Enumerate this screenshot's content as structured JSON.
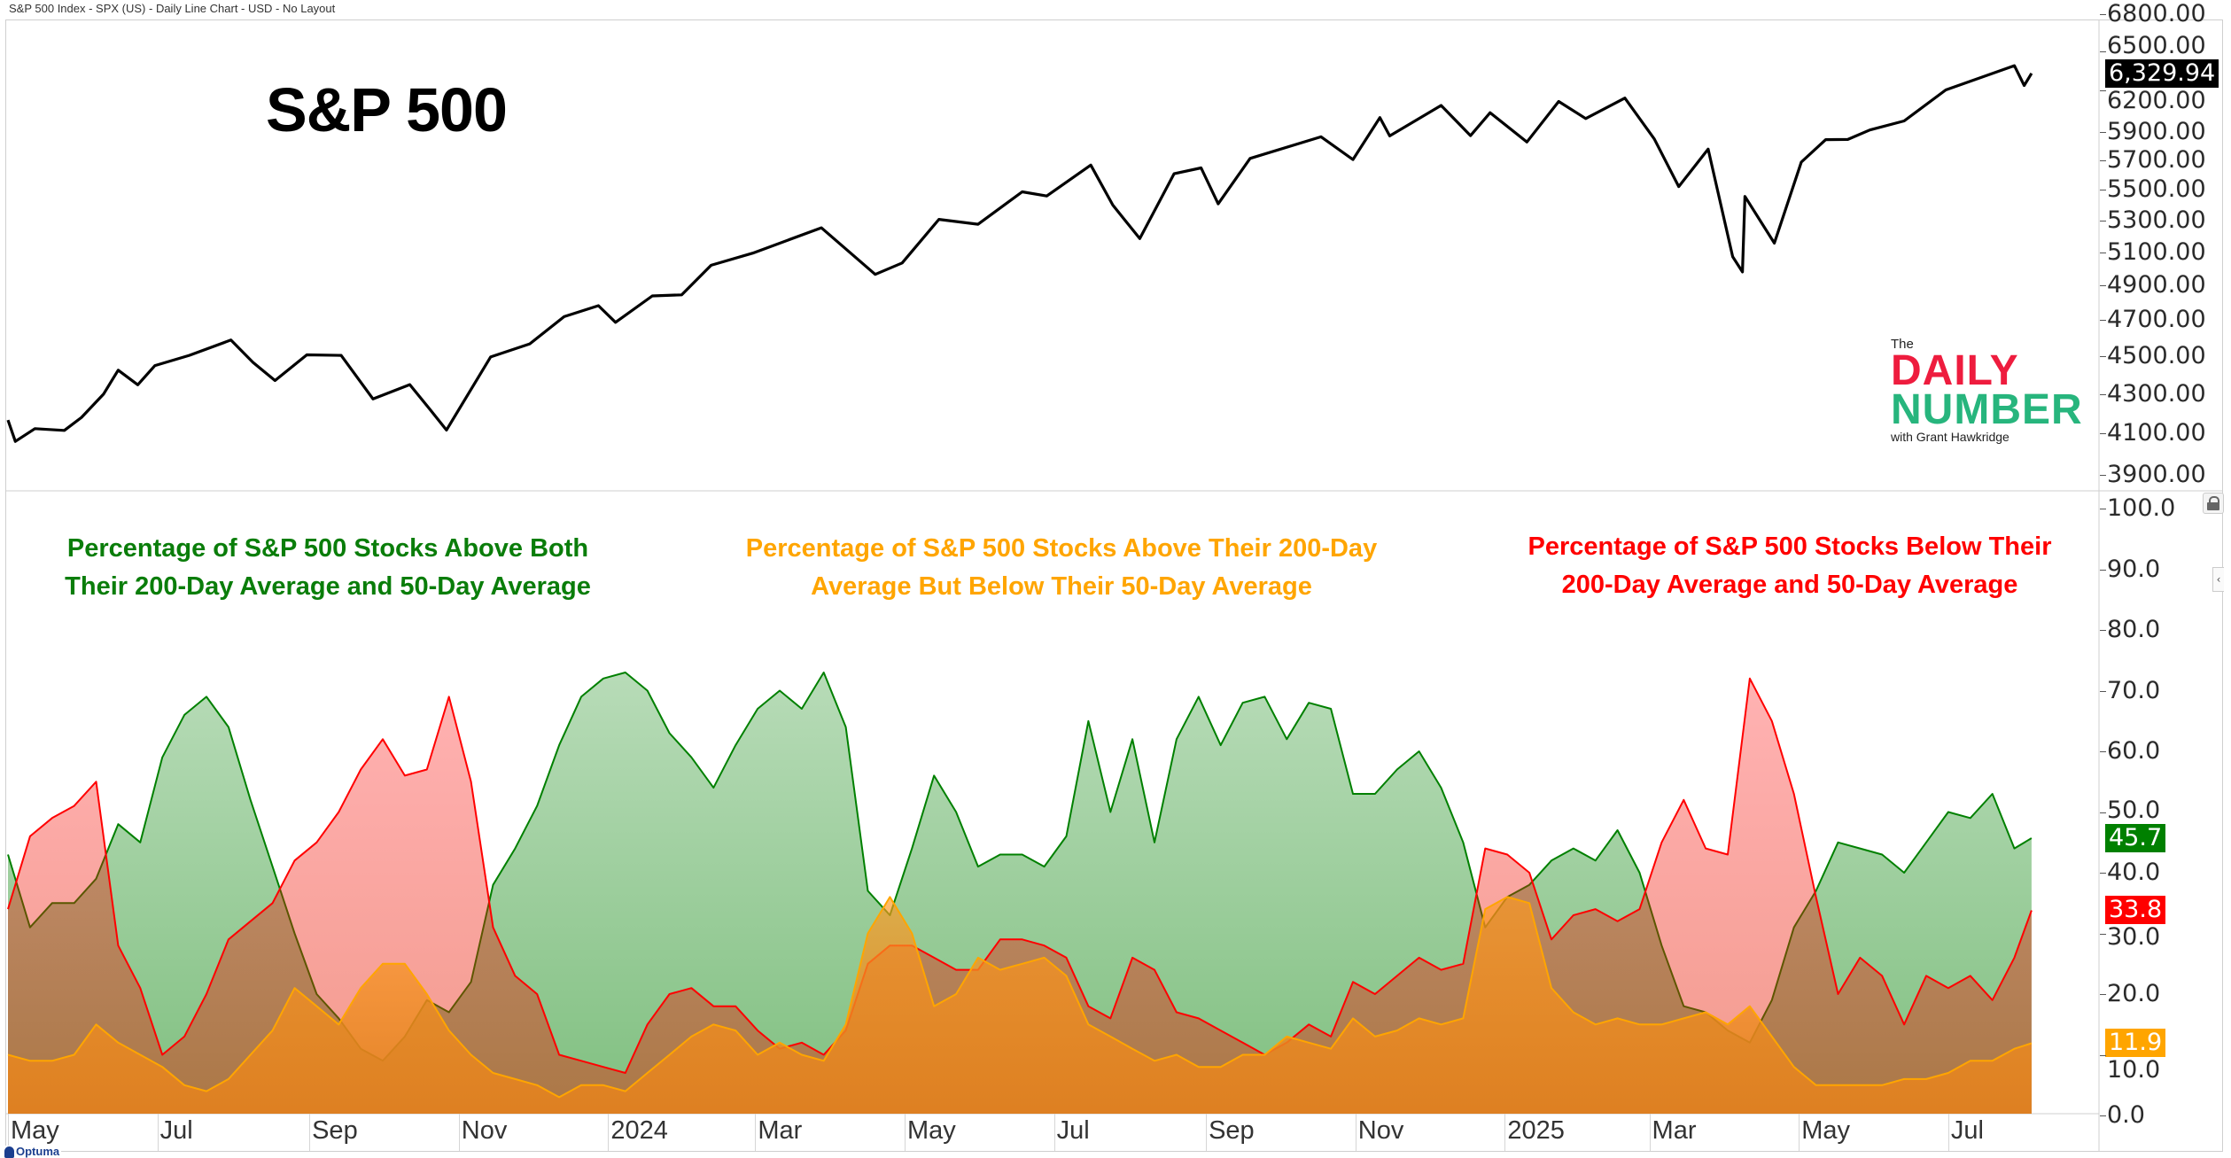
{
  "header": {
    "title": "S&P 500 Index - SPX (US) - Daily Line Chart - USD - No Layout"
  },
  "branding": {
    "optuma": "Optuma",
    "logo": {
      "the": "The",
      "line1": "DAILY",
      "line2": "NUMBER",
      "byline": "with Grant Hawkridge"
    }
  },
  "x_axis": {
    "ticks": [
      {
        "date": "2023-05-01",
        "label": "May"
      },
      {
        "date": "2023-07-01",
        "label": "Jul"
      },
      {
        "date": "2023-09-01",
        "label": "Sep"
      },
      {
        "date": "2023-11-01",
        "label": "Nov"
      },
      {
        "date": "2024-01-01",
        "label": "2024"
      },
      {
        "date": "2024-03-01",
        "label": "Mar"
      },
      {
        "date": "2024-05-01",
        "label": "May"
      },
      {
        "date": "2024-07-01",
        "label": "Jul"
      },
      {
        "date": "2024-09-01",
        "label": "Sep"
      },
      {
        "date": "2024-11-01",
        "label": "Nov"
      },
      {
        "date": "2025-01-01",
        "label": "2025"
      },
      {
        "date": "2025-03-01",
        "label": "Mar"
      },
      {
        "date": "2025-05-01",
        "label": "May"
      },
      {
        "date": "2025-07-01",
        "label": "Jul"
      }
    ]
  },
  "chart_data": [
    {
      "type": "line",
      "title": "S&P 500",
      "y_scale": "log",
      "ylim": [
        3850,
        6800
      ],
      "y_ticks": [
        "6800.00",
        "6500.00",
        "6200.00",
        "5900.00",
        "5700.00",
        "5500.00",
        "5300.00",
        "5100.00",
        "4900.00",
        "4700.00",
        "4500.00",
        "4300.00",
        "4100.00",
        "3900.00"
      ],
      "last_value_label": "6,329.94",
      "color": "#000000",
      "series": [
        {
          "points": [
            [
              "2023-05-01",
              4167
            ],
            [
              "2023-05-04",
              4061
            ],
            [
              "2023-05-12",
              4124
            ],
            [
              "2023-05-24",
              4115
            ],
            [
              "2023-05-31",
              4180
            ],
            [
              "2023-06-09",
              4299
            ],
            [
              "2023-06-15",
              4425
            ],
            [
              "2023-06-23",
              4348
            ],
            [
              "2023-06-30",
              4450
            ],
            [
              "2023-07-14",
              4505
            ],
            [
              "2023-07-31",
              4589
            ],
            [
              "2023-08-09",
              4467
            ],
            [
              "2023-08-18",
              4370
            ],
            [
              "2023-08-31",
              4508
            ],
            [
              "2023-09-14",
              4505
            ],
            [
              "2023-09-27",
              4274
            ],
            [
              "2023-10-12",
              4349
            ],
            [
              "2023-10-20",
              4224
            ],
            [
              "2023-10-27",
              4117
            ],
            [
              "2023-11-14",
              4496
            ],
            [
              "2023-11-30",
              4568
            ],
            [
              "2023-12-14",
              4720
            ],
            [
              "2023-12-28",
              4783
            ],
            [
              "2024-01-04",
              4688
            ],
            [
              "2024-01-19",
              4840
            ],
            [
              "2024-01-31",
              4846
            ],
            [
              "2024-02-12",
              5022
            ],
            [
              "2024-02-29",
              5096
            ],
            [
              "2024-03-28",
              5254
            ],
            [
              "2024-04-19",
              4967
            ],
            [
              "2024-04-30",
              5036
            ],
            [
              "2024-05-15",
              5308
            ],
            [
              "2024-05-31",
              5277
            ],
            [
              "2024-06-18",
              5487
            ],
            [
              "2024-06-28",
              5460
            ],
            [
              "2024-07-16",
              5667
            ],
            [
              "2024-07-25",
              5400
            ],
            [
              "2024-08-05",
              5186
            ],
            [
              "2024-08-19",
              5608
            ],
            [
              "2024-08-30",
              5648
            ],
            [
              "2024-09-06",
              5408
            ],
            [
              "2024-09-19",
              5713
            ],
            [
              "2024-10-18",
              5864
            ],
            [
              "2024-10-31",
              5705
            ],
            [
              "2024-11-11",
              6001
            ],
            [
              "2024-11-15",
              5870
            ],
            [
              "2024-12-06",
              6090
            ],
            [
              "2024-12-18",
              5872
            ],
            [
              "2024-12-26",
              6037
            ],
            [
              "2025-01-10",
              5827
            ],
            [
              "2025-01-23",
              6119
            ],
            [
              "2025-02-03",
              5994
            ],
            [
              "2025-02-19",
              6144
            ],
            [
              "2025-03-03",
              5849
            ],
            [
              "2025-03-13",
              5522
            ],
            [
              "2025-03-25",
              5777
            ],
            [
              "2025-04-04",
              5074
            ],
            [
              "2025-04-08",
              4982
            ],
            [
              "2025-04-09",
              5457
            ],
            [
              "2025-04-21",
              5158
            ],
            [
              "2025-05-02",
              5687
            ],
            [
              "2025-05-12",
              5844
            ],
            [
              "2025-05-21",
              5845
            ],
            [
              "2025-05-30",
              5912
            ],
            [
              "2025-06-13",
              5977
            ],
            [
              "2025-06-30",
              6205
            ],
            [
              "2025-07-28",
              6389
            ],
            [
              "2025-08-01",
              6238
            ],
            [
              "2025-08-04",
              6329.94
            ]
          ]
        }
      ]
    },
    {
      "type": "area",
      "ylim": [
        0,
        100
      ],
      "y_ticks": [
        "100.0",
        "90.0",
        "80.0",
        "70.0",
        "60.0",
        "50.0",
        "40.0",
        "30.0",
        "20.0",
        "10.0",
        "0.0"
      ],
      "grid": false,
      "dates": [
        "2023-05-01",
        "2023-05-10",
        "2023-05-19",
        "2023-05-28",
        "2023-06-06",
        "2023-06-15",
        "2023-06-24",
        "2023-07-03",
        "2023-07-12",
        "2023-07-21",
        "2023-07-30",
        "2023-08-08",
        "2023-08-17",
        "2023-08-26",
        "2023-09-04",
        "2023-09-13",
        "2023-09-22",
        "2023-10-01",
        "2023-10-10",
        "2023-10-19",
        "2023-10-28",
        "2023-11-06",
        "2023-11-15",
        "2023-11-24",
        "2023-12-03",
        "2023-12-12",
        "2023-12-21",
        "2023-12-30",
        "2024-01-08",
        "2024-01-17",
        "2024-01-26",
        "2024-02-04",
        "2024-02-13",
        "2024-02-22",
        "2024-03-02",
        "2024-03-11",
        "2024-03-20",
        "2024-03-29",
        "2024-04-07",
        "2024-04-16",
        "2024-04-25",
        "2024-05-04",
        "2024-05-13",
        "2024-05-22",
        "2024-05-31",
        "2024-06-09",
        "2024-06-18",
        "2024-06-27",
        "2024-07-06",
        "2024-07-15",
        "2024-07-24",
        "2024-08-02",
        "2024-08-11",
        "2024-08-20",
        "2024-08-29",
        "2024-09-07",
        "2024-09-16",
        "2024-09-25",
        "2024-10-04",
        "2024-10-13",
        "2024-10-22",
        "2024-10-31",
        "2024-11-09",
        "2024-11-18",
        "2024-11-27",
        "2024-12-06",
        "2024-12-15",
        "2024-12-24",
        "2025-01-02",
        "2025-01-11",
        "2025-01-20",
        "2025-01-29",
        "2025-02-07",
        "2025-02-16",
        "2025-02-25",
        "2025-03-06",
        "2025-03-15",
        "2025-03-24",
        "2025-04-02",
        "2025-04-11",
        "2025-04-20",
        "2025-04-29",
        "2025-05-08",
        "2025-05-17",
        "2025-05-26",
        "2025-06-04",
        "2025-06-13",
        "2025-06-22",
        "2025-07-01",
        "2025-07-10",
        "2025-07-19",
        "2025-07-28",
        "2025-08-04"
      ],
      "series": [
        {
          "name": "Percentage of S&P 500 Stocks Above Both Their 200-Day Average and 50-Day Average",
          "title_lines": [
            "Percentage of S&P 500 Stocks Above Both",
            "Their 200-Day Average and 50-Day Average"
          ],
          "color": "#008000",
          "last_label": "45.7",
          "values": [
            43,
            31,
            35,
            35,
            39,
            48,
            45,
            59,
            66,
            69,
            64,
            52,
            41,
            30,
            20,
            16,
            11,
            9,
            13,
            19,
            17,
            22,
            38,
            44,
            51,
            61,
            69,
            72,
            73,
            70,
            63,
            59,
            54,
            61,
            67,
            70,
            67,
            73,
            64,
            37,
            33,
            44,
            56,
            50,
            41,
            43,
            43,
            41,
            46,
            65,
            50,
            62,
            45,
            62,
            69,
            61,
            68,
            69,
            62,
            68,
            67,
            53,
            53,
            57,
            60,
            54,
            45,
            31,
            36,
            38,
            42,
            44,
            42,
            47,
            40,
            28,
            18,
            17,
            14,
            12,
            19,
            31,
            37,
            45,
            44,
            43,
            40,
            45,
            50,
            49,
            53,
            44,
            45.7
          ]
        },
        {
          "name": "Percentage of S&P 500 Stocks Below Their 200-Day Average and 50-Day Average",
          "title_lines": [
            "Percentage of S&P 500 Stocks Below Their",
            "200-Day Average and 50-Day Average"
          ],
          "color": "#FF0000",
          "last_label": "33.8",
          "values": [
            34,
            46,
            49,
            51,
            55,
            28,
            21,
            10,
            13,
            20,
            29,
            32,
            35,
            42,
            45,
            50,
            57,
            62,
            56,
            57,
            69,
            55,
            31,
            23,
            20,
            10,
            9,
            8,
            7,
            15,
            20,
            21,
            18,
            18,
            14,
            11,
            12,
            10,
            14,
            25,
            28,
            28,
            26,
            24,
            24,
            29,
            29,
            28,
            26,
            18,
            16,
            26,
            24,
            17,
            16,
            14,
            12,
            10,
            12,
            15,
            13,
            22,
            20,
            23,
            26,
            24,
            25,
            44,
            43,
            40,
            29,
            33,
            34,
            32,
            34,
            45,
            52,
            44,
            43,
            72,
            65,
            53,
            36,
            20,
            26,
            23,
            15,
            23,
            21,
            23,
            19,
            26,
            33.8
          ]
        },
        {
          "name": "Percentage of S&P 500 Stocks Above Their 200-Day Average But Below Their 50-Day Average",
          "title_lines": [
            "Percentage of S&P 500 Stocks Above Their 200-Day",
            "Average But Below Their 50-Day Average"
          ],
          "color": "#FFA500",
          "last_label": "11.9",
          "values": [
            10,
            9,
            9,
            10,
            15,
            12,
            10,
            8,
            5,
            4,
            6,
            10,
            14,
            21,
            18,
            15,
            21,
            25,
            25,
            20,
            14,
            10,
            7,
            6,
            5,
            3,
            5,
            5,
            4,
            7,
            10,
            13,
            15,
            14,
            10,
            12,
            10,
            9,
            15,
            30,
            36,
            30,
            18,
            20,
            26,
            24,
            25,
            26,
            23,
            15,
            13,
            11,
            9,
            10,
            8,
            8,
            10,
            10,
            13,
            12,
            11,
            16,
            13,
            14,
            16,
            15,
            16,
            34,
            36,
            35,
            21,
            17,
            15,
            16,
            15,
            15,
            16,
            17,
            15,
            18,
            13,
            8,
            5,
            5,
            5,
            5,
            6,
            6,
            7,
            9,
            9,
            11,
            11.9
          ]
        }
      ]
    }
  ]
}
